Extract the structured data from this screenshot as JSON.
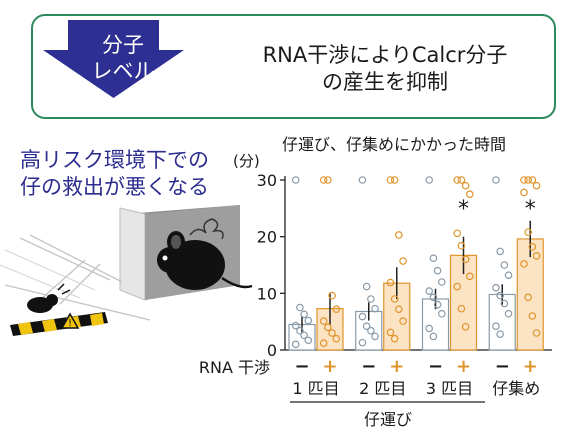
{
  "banner": {
    "level_label": "分子\nレベル",
    "headline": "RNA干渉によりCalcr分子\nの産生を抑制"
  },
  "finding": "高リスク環境下での\n仔の救出が悪くなる",
  "chart_data": {
    "type": "bar",
    "title": "仔運び、仔集めにかかった時間",
    "ylabel": "(分)",
    "ylim": [
      0,
      30
    ],
    "yticks": [
      0,
      10,
      20,
      30
    ],
    "condition_label": "RNA 干渉",
    "conditions": [
      "−",
      "+"
    ],
    "categories": [
      "1 匹目",
      "2 匹目",
      "3 匹目",
      "仔集め"
    ],
    "group_label": "仔運び",
    "series": [
      {
        "name": "−",
        "color": "#8a9aa8",
        "fill": "#ffffff",
        "values": [
          4.5,
          6.8,
          9,
          9.8
        ],
        "errors": [
          1.5,
          1.6,
          1.8,
          1.8
        ]
      },
      {
        "name": "+",
        "color": "#e0952c",
        "fill": "#fbe3c4",
        "values": [
          7.3,
          11.8,
          16.7,
          19.6
        ],
        "errors": [
          2.8,
          2.8,
          3.3,
          3.2
        ]
      }
    ],
    "significance": [
      "",
      "",
      "*",
      "*"
    ],
    "points": [
      {
        "minus": [
          30,
          7.5,
          6.3,
          5.2,
          4.3,
          3.4,
          2.6,
          1.7,
          1.0
        ],
        "plus": [
          30,
          30,
          9.6,
          7.2,
          5.1,
          4.0,
          3.0,
          2.0,
          1.2
        ]
      },
      {
        "minus": [
          30,
          11.2,
          9.0,
          7.3,
          5.9,
          4.2,
          3.4,
          2.4,
          1.3
        ],
        "plus": [
          30,
          30,
          20.3,
          15.7,
          11.9,
          9.0,
          7.2,
          5.1,
          3.1,
          2.0
        ]
      },
      {
        "minus": [
          30,
          16.2,
          14.0,
          12.0,
          10.4,
          9.3,
          8.0,
          6.4,
          3.8,
          2.4
        ],
        "plus": [
          30,
          30,
          29,
          27.5,
          20.6,
          18.4,
          16.0,
          13.0,
          11.2,
          7.3,
          4.1
        ]
      },
      {
        "minus": [
          30,
          17.4,
          15.0,
          13.2,
          11.0,
          9.6,
          8.2,
          6.4,
          4.2,
          2.8
        ],
        "plus": [
          30,
          30,
          30,
          29,
          27.8,
          20.8,
          18.2,
          16.6,
          15.2,
          9.3,
          6.0,
          3.0
        ]
      }
    ]
  },
  "colors": {
    "accent_navy": "#2d2d8f",
    "border_green": "#2e8a5e",
    "orange": "#e0952c",
    "gray": "#8a9aa8"
  }
}
